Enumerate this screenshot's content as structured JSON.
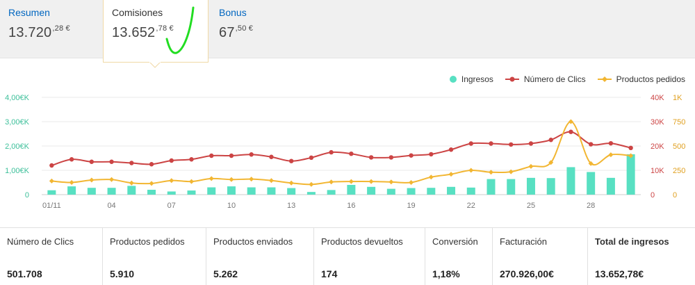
{
  "tabs": [
    {
      "label": "Resumen",
      "amount_main": "13.720",
      "amount_sup": ",28 €"
    },
    {
      "label": "Comisiones",
      "amount_main": "13.652",
      "amount_sup": ",78 €"
    },
    {
      "label": "Bonus",
      "amount_main": "67",
      "amount_sup": ",50 €"
    }
  ],
  "active_tab": 1,
  "legend": [
    {
      "label": "Ingresos",
      "color": "#58e0c2"
    },
    {
      "label": "Número de Clics",
      "color": "#cc4444"
    },
    {
      "label": "Productos pedidos",
      "color": "#f2b632"
    }
  ],
  "chart_data": {
    "type": "bar+line",
    "x": [
      "01/11",
      "02/11",
      "03/11",
      "04/11",
      "05/11",
      "06/11",
      "07/11",
      "08/11",
      "09/11",
      "10/11",
      "11/11",
      "12/11",
      "13/11",
      "14/11",
      "15/11",
      "16/11",
      "17/11",
      "18/11",
      "19/11",
      "20/11",
      "21/11",
      "22/11",
      "23/11",
      "24/11",
      "25/11",
      "26/11",
      "27/11",
      "28/11",
      "29/11",
      "30/11"
    ],
    "x_tick_labels": [
      "01/11",
      "04",
      "07",
      "10",
      "13",
      "16",
      "19",
      "22",
      "25",
      "28"
    ],
    "left_axis": {
      "ticks": [
        "0",
        "1,00€K",
        "2,00€K",
        "3,00€K",
        "4,00€K"
      ],
      "min": 0,
      "max": 4000
    },
    "right_axis_1": {
      "ticks": [
        "0",
        "10K",
        "20K",
        "30K",
        "40K"
      ],
      "min": 0,
      "max": 40000
    },
    "right_axis_2": {
      "ticks": [
        "0",
        "250",
        "500",
        "750",
        "1K"
      ],
      "min": 0,
      "max": 1000
    },
    "series": [
      {
        "name": "Ingresos",
        "axis": "left",
        "kind": "bar",
        "values": [
          180,
          340,
          280,
          280,
          360,
          200,
          130,
          170,
          300,
          340,
          300,
          300,
          270,
          110,
          190,
          400,
          320,
          240,
          270,
          280,
          320,
          290,
          640,
          640,
          690,
          680,
          1130,
          930,
          690,
          1660
        ]
      },
      {
        "name": "Número de Clics",
        "axis": "right_1",
        "kind": "line",
        "values": [
          12000,
          14500,
          13500,
          13500,
          13000,
          12500,
          14000,
          14500,
          16000,
          16000,
          16500,
          15500,
          13800,
          15200,
          17400,
          16800,
          15300,
          15300,
          16100,
          16600,
          18500,
          21000,
          21000,
          20600,
          21000,
          22500,
          25800,
          20700,
          21100,
          19200
        ]
      },
      {
        "name": "Productos pedidos",
        "axis": "right_2",
        "kind": "line",
        "values": [
          140,
          125,
          150,
          155,
          120,
          115,
          145,
          135,
          165,
          155,
          160,
          145,
          120,
          105,
          130,
          135,
          135,
          130,
          125,
          180,
          210,
          250,
          230,
          235,
          290,
          330,
          750,
          320,
          410,
          400
        ]
      }
    ]
  },
  "stats": [
    {
      "label": "Número de Clics",
      "value": "501.708"
    },
    {
      "label": "Productos pedidos",
      "value": "5.910"
    },
    {
      "label": "Productos enviados",
      "value": "5.262"
    },
    {
      "label": "Productos devueltos",
      "value": "174"
    },
    {
      "label": "Conversión",
      "value": "1,18%"
    },
    {
      "label": "Facturación",
      "value": "270.926,00€"
    },
    {
      "label": "Total de ingresos",
      "value": "13.652,78€"
    }
  ]
}
